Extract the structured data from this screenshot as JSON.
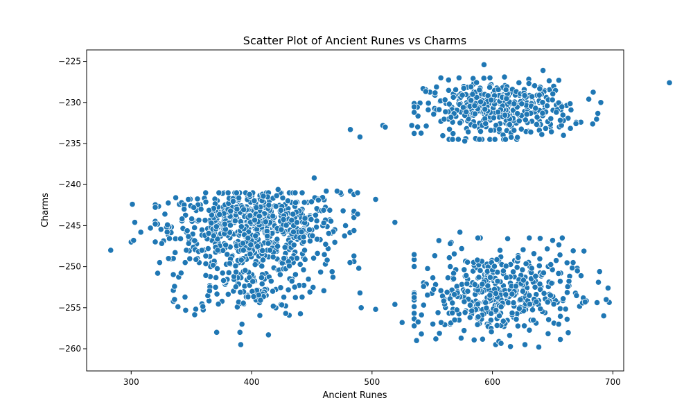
{
  "chart_data": {
    "type": "scatter",
    "title": "Scatter Plot of Ancient Runes vs Charms",
    "xlabel": "Ancient Runes",
    "ylabel": "Charms",
    "xlim": [
      263,
      709
    ],
    "ylim": [
      -262.7,
      -223.6
    ],
    "x_ticks": [
      300,
      400,
      500,
      600,
      700
    ],
    "y_ticks": [
      -225,
      -230,
      -235,
      -240,
      -245,
      -250,
      -255,
      -260
    ],
    "grid": false,
    "legend": "none",
    "marker_color": "#1f77b4",
    "series": [
      {
        "clusters": [
          {
            "shape": "ellipse",
            "center": [
              403,
              -245.0
            ],
            "spread": [
              35,
              2.2
            ],
            "count": 620,
            "x_range": [
              320,
              485
            ],
            "y_range": [
              -241.0,
              -249.5
            ]
          },
          {
            "shape": "ellipse",
            "center": [
              396,
              -251.5
            ],
            "spread": [
              30,
              2.3
            ],
            "count": 180,
            "x_range": [
              335,
              470
            ],
            "y_range": [
              -248.0,
              -258.0
            ]
          },
          {
            "shape": "ellipse",
            "center": [
              605,
              -230.8
            ],
            "spread": [
              30,
              1.7
            ],
            "count": 420,
            "x_range": [
              535,
              690
            ],
            "y_range": [
              -227.0,
              -234.5
            ]
          },
          {
            "shape": "ellipse",
            "center": [
              603,
              -253.3
            ],
            "spread": [
              32,
              2.6
            ],
            "count": 430,
            "x_range": [
              535,
              697
            ],
            "y_range": [
              -246.5,
              -261.0
            ]
          }
        ],
        "points": [
          [
            283,
            -248.0
          ],
          [
            300,
            -247.0
          ],
          [
            302,
            -246.8
          ],
          [
            301,
            -242.4
          ],
          [
            303,
            -244.6
          ],
          [
            308,
            -245.8
          ],
          [
            316,
            -245.3
          ],
          [
            320,
            -244.8
          ],
          [
            322,
            -250.8
          ],
          [
            328,
            -243.6
          ],
          [
            331,
            -249.0
          ],
          [
            336,
            -252.4
          ],
          [
            336,
            -254.0
          ],
          [
            337,
            -241.6
          ],
          [
            341,
            -246.6
          ],
          [
            344,
            -243.0
          ],
          [
            352,
            -242.8
          ],
          [
            358,
            -243.0
          ],
          [
            371,
            -258.0
          ],
          [
            391,
            -259.5
          ],
          [
            392,
            -257.0
          ],
          [
            414,
            -258.3
          ],
          [
            422,
            -240.6
          ],
          [
            452,
            -239.2
          ],
          [
            462,
            -240.8
          ],
          [
            471,
            -240.8
          ],
          [
            478,
            -245.0
          ],
          [
            482,
            -233.3
          ],
          [
            482,
            -240.8
          ],
          [
            485,
            -241.2
          ],
          [
            488,
            -241.0
          ],
          [
            488,
            -243.6
          ],
          [
            490,
            -234.2
          ],
          [
            489,
            -250.2
          ],
          [
            490,
            -253.2
          ],
          [
            491,
            -255.0
          ],
          [
            503,
            -241.8
          ],
          [
            503,
            -255.2
          ],
          [
            509,
            -232.8
          ],
          [
            511,
            -233.0
          ],
          [
            519,
            -244.6
          ],
          [
            519,
            -254.6
          ],
          [
            525,
            -256.8
          ],
          [
            533,
            -232.8
          ],
          [
            537,
            -259.0
          ],
          [
            541,
            -258.2
          ],
          [
            553,
            -258.8
          ],
          [
            565,
            -247.2
          ],
          [
            573,
            -245.8
          ],
          [
            593,
            -225.4
          ],
          [
            610,
            -226.9
          ],
          [
            622,
            -227.6
          ],
          [
            627,
            -259.5
          ],
          [
            642,
            -226.1
          ],
          [
            650,
            -246.8
          ],
          [
            658,
            -246.5
          ],
          [
            667,
            -249.5
          ],
          [
            676,
            -248.1
          ],
          [
            677,
            -254.3
          ],
          [
            689,
            -250.6
          ],
          [
            688,
            -251.9
          ],
          [
            696,
            -252.6
          ],
          [
            690,
            -230.0
          ],
          [
            747,
            -227.6
          ],
          [
            655,
            -257.0
          ],
          [
            662,
            -256.4
          ],
          [
            680,
            -229.6
          ],
          [
            659,
            -234.0
          ],
          [
            641,
            -233.9
          ],
          [
            577,
            -234.7
          ]
        ]
      }
    ]
  }
}
